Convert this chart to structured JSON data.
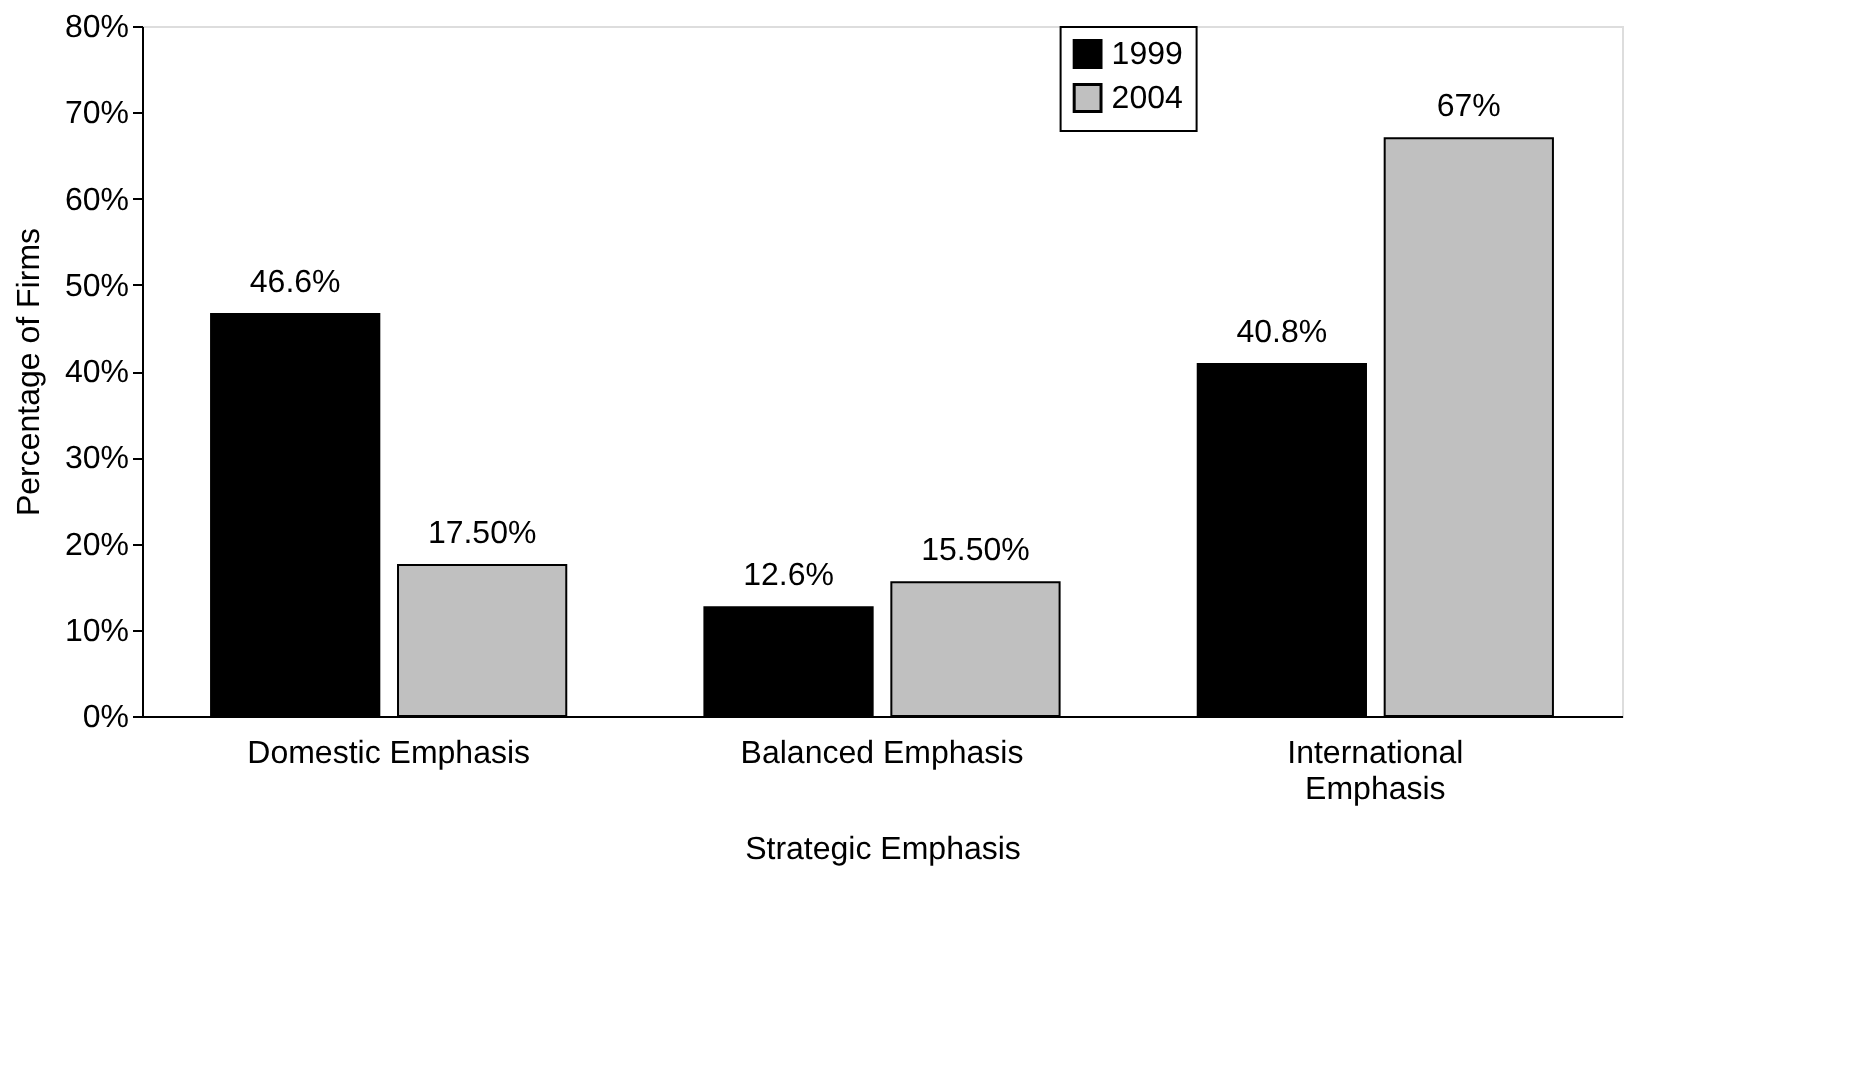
{
  "chart_data": {
    "type": "bar",
    "xlabel": "Strategic Emphasis",
    "ylabel": "Percentage of Firms",
    "categories": [
      "Domestic Emphasis",
      "Balanced Emphasis",
      "International Emphasis"
    ],
    "series": [
      {
        "name": "1999",
        "color": "#000000",
        "values": [
          46.6,
          12.6,
          40.8
        ],
        "value_labels": [
          "46.6%",
          "12.6%",
          "40.8%"
        ]
      },
      {
        "name": "2004",
        "color": "#c0c0c0",
        "values": [
          17.5,
          15.5,
          67
        ],
        "value_labels": [
          "17.50%",
          "15.50%",
          "67%"
        ]
      }
    ],
    "ylim": [
      0,
      80
    ],
    "yticks": [
      {
        "value": 0,
        "label": "0%"
      },
      {
        "value": 10,
        "label": "10%"
      },
      {
        "value": 20,
        "label": "20%"
      },
      {
        "value": 30,
        "label": "30%"
      },
      {
        "value": 40,
        "label": "40%"
      },
      {
        "value": 50,
        "label": "50%"
      },
      {
        "value": 60,
        "label": "60%"
      },
      {
        "value": 70,
        "label": "70%"
      },
      {
        "value": 80,
        "label": "80%"
      }
    ],
    "grid": false,
    "legend": "top right"
  }
}
